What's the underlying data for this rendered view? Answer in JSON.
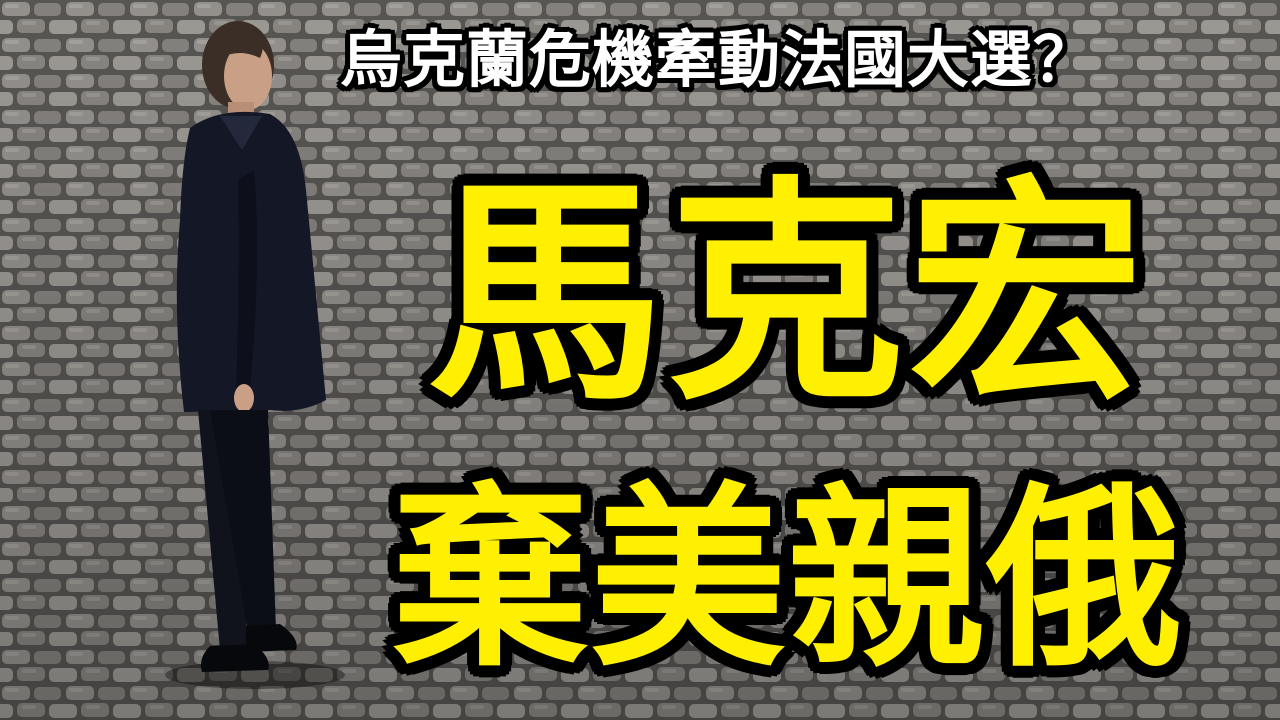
{
  "thumbnail": {
    "headline": "烏克蘭危機牽動法國大選？",
    "name_text": "馬克宏",
    "slogan_text": "棄美親俄"
  },
  "colors": {
    "headline_fill": "#ffffff",
    "big_text_fill": "#ffef00",
    "outline": "#000000",
    "cobblestone": "#6e6c69"
  }
}
